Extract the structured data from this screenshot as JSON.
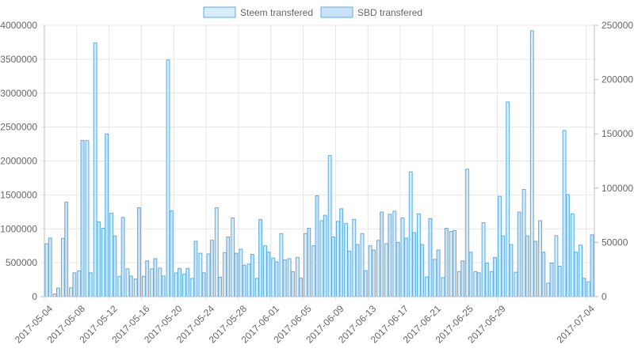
{
  "chart_data": {
    "type": "bar",
    "legend_position": "top-center",
    "grid": true,
    "series": [
      {
        "name": "Steem transfered",
        "axis": "left",
        "color": "#d6ecf8",
        "border": "#5aaee0",
        "values": [
          780000,
          40000,
          860000,
          130000,
          380000,
          2300000,
          3740000,
          1010000,
          1230000,
          300000,
          410000,
          260000,
          300000,
          410000,
          420000,
          3490000,
          350000,
          330000,
          270000,
          640000,
          630000,
          1310000,
          650000,
          1160000,
          700000,
          480000,
          270000,
          750000,
          570000,
          930000,
          560000,
          580000,
          930000,
          750000,
          1120000,
          2080000,
          1110000,
          1080000,
          1140000,
          930000,
          750000,
          830000,
          780000,
          1260000,
          1160000,
          1840000,
          1220000,
          290000,
          550000,
          280000,
          960000,
          370000,
          1880000,
          370000,
          1090000,
          370000,
          1480000,
          2870000,
          360000,
          1580000,
          3920000,
          1120000,
          200000,
          900000,
          2450000,
          1220000,
          760000,
          220000
        ]
      },
      {
        "name": "SBD transfered",
        "axis": "right",
        "color": "#c9e2f7",
        "border": "#5aaee0",
        "values": [
          54000,
          8000,
          87000,
          22000,
          144000,
          22000,
          69000,
          150000,
          56000,
          73000,
          19000,
          82000,
          33000,
          35000,
          19000,
          79000,
          26000,
          26000,
          51000,
          22000,
          52000,
          18000,
          55000,
          40000,
          29000,
          39000,
          71000,
          41000,
          32000,
          34000,
          23000,
          17000,
          63000,
          93000,
          75000,
          55000,
          81000,
          42000,
          48000,
          24000,
          43000,
          78000,
          76000,
          50000,
          54000,
          59000,
          48000,
          72000,
          43000,
          63000,
          61000,
          33000,
          41000,
          22000,
          31000,
          36000,
          56000,
          48000,
          78000,
          56000,
          51000,
          41000,
          31000,
          28000,
          94000,
          41000,
          17000,
          57000
        ]
      }
    ],
    "x_tick_labels": [
      "2017-05-04",
      "2017-05-08",
      "2017-05-12",
      "2017-05-16",
      "2017-05-20",
      "2017-05-24",
      "2017-05-28",
      "2017-06-01",
      "2017-06-05",
      "2017-06-09",
      "2017-06-13",
      "2017-06-17",
      "2017-06-21",
      "2017-06-25",
      "2017-06-29",
      "2017-07-04"
    ],
    "y_left": {
      "min": 0,
      "max": 4000000,
      "ticks": [
        "0",
        "500000",
        "1000000",
        "1500000",
        "2000000",
        "2500000",
        "3000000",
        "3500000",
        "4000000"
      ]
    },
    "y_right": {
      "min": 0,
      "max": 250000,
      "ticks": [
        "0",
        "50000",
        "100000",
        "150000",
        "200000",
        "250000"
      ]
    }
  }
}
